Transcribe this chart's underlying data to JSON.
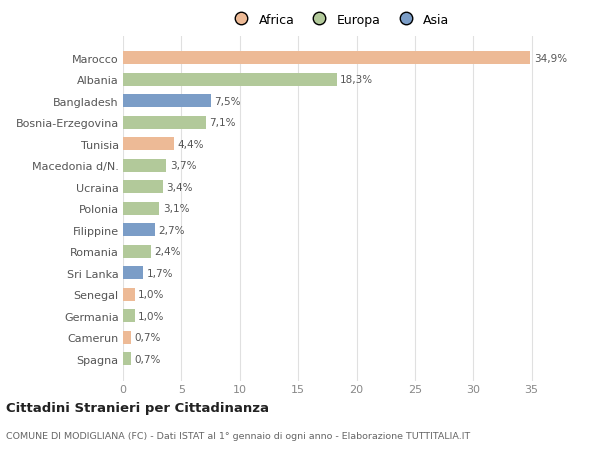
{
  "countries": [
    "Marocco",
    "Albania",
    "Bangladesh",
    "Bosnia-Erzegovina",
    "Tunisia",
    "Macedonia d/N.",
    "Ucraina",
    "Polonia",
    "Filippine",
    "Romania",
    "Sri Lanka",
    "Senegal",
    "Germania",
    "Camerun",
    "Spagna"
  ],
  "values": [
    34.9,
    18.3,
    7.5,
    7.1,
    4.4,
    3.7,
    3.4,
    3.1,
    2.7,
    2.4,
    1.7,
    1.0,
    1.0,
    0.7,
    0.7
  ],
  "labels": [
    "34,9%",
    "18,3%",
    "7,5%",
    "7,1%",
    "4,4%",
    "3,7%",
    "3,4%",
    "3,1%",
    "2,7%",
    "2,4%",
    "1,7%",
    "1,0%",
    "1,0%",
    "0,7%",
    "0,7%"
  ],
  "continents": [
    "Africa",
    "Europa",
    "Asia",
    "Europa",
    "Africa",
    "Europa",
    "Europa",
    "Europa",
    "Asia",
    "Europa",
    "Asia",
    "Africa",
    "Europa",
    "Africa",
    "Europa"
  ],
  "colors": {
    "Africa": "#EDBA96",
    "Europa": "#B2C99A",
    "Asia": "#7B9DC7"
  },
  "legend_labels": [
    "Africa",
    "Europa",
    "Asia"
  ],
  "legend_colors": [
    "#EDBA96",
    "#B2C99A",
    "#7B9DC7"
  ],
  "title": "Cittadini Stranieri per Cittadinanza",
  "subtitle": "COMUNE DI MODIGLIANA (FC) - Dati ISTAT al 1° gennaio di ogni anno - Elaborazione TUTTITALIA.IT",
  "xlim": [
    0,
    37
  ],
  "xticks": [
    0,
    5,
    10,
    15,
    20,
    25,
    30,
    35
  ],
  "background_color": "#ffffff",
  "grid_color": "#e0e0e0"
}
